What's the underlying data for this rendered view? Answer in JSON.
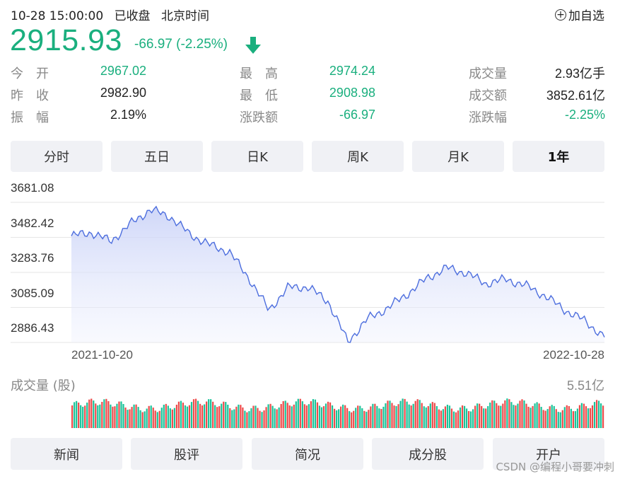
{
  "status": {
    "datetime": "10-28 15:00:00",
    "market_state": "已收盘",
    "timezone": "北京时间"
  },
  "add_watchlist": "加自选",
  "quote": {
    "price": "2915.93",
    "change": "-66.97 (-2.25%)"
  },
  "stats": [
    {
      "label": "今　开",
      "value": "2967.02",
      "tone": "green"
    },
    {
      "label": "最　高",
      "value": "2974.24",
      "tone": "green"
    },
    {
      "label": "成交量",
      "value": "2.93亿手",
      "tone": "dark"
    },
    {
      "label": "昨　收",
      "value": "2982.90",
      "tone": "dark"
    },
    {
      "label": "最　低",
      "value": "2908.98",
      "tone": "green"
    },
    {
      "label": "成交额",
      "value": "3852.61亿",
      "tone": "dark"
    },
    {
      "label": "振　幅",
      "value": "2.19%",
      "tone": "dark"
    },
    {
      "label": "涨跌额",
      "value": "-66.97",
      "tone": "green"
    },
    {
      "label": "涨跌幅",
      "value": "-2.25%",
      "tone": "green"
    }
  ],
  "tabs": [
    "分时",
    "五日",
    "日K",
    "周K",
    "月K",
    "1年"
  ],
  "active_tab": "1年",
  "chart_data": {
    "type": "area",
    "y_ticks": [
      "3681.08",
      "3482.42",
      "3283.76",
      "3085.09",
      "2886.43"
    ],
    "ylim": [
      2886.43,
      3681.08
    ],
    "x_ticks": [
      "2021-10-20",
      "2022-10-28"
    ],
    "x": [
      "2021-10-20",
      "2021-11-03",
      "2021-11-17",
      "2021-12-01",
      "2021-12-15",
      "2021-12-29",
      "2022-01-12",
      "2022-01-26",
      "2022-02-09",
      "2022-02-23",
      "2022-03-09",
      "2022-03-16",
      "2022-03-30",
      "2022-04-13",
      "2022-04-27",
      "2022-05-11",
      "2022-05-25",
      "2022-06-08",
      "2022-06-22",
      "2022-07-06",
      "2022-07-20",
      "2022-08-03",
      "2022-08-17",
      "2022-08-31",
      "2022-09-14",
      "2022-09-28",
      "2022-10-12",
      "2022-10-28"
    ],
    "values": [
      3490,
      3510,
      3460,
      3560,
      3640,
      3600,
      3500,
      3440,
      3400,
      3250,
      3070,
      3200,
      3200,
      3120,
      2890,
      3020,
      3080,
      3160,
      3250,
      3310,
      3280,
      3220,
      3245,
      3210,
      3150,
      3070,
      3010,
      2916
    ],
    "color": "#4d6ede",
    "volume_label": "成交量 (股)",
    "volume_max": "5.51亿",
    "up_color": "#ee4b4b",
    "down_color": "#1bc49a"
  },
  "bottom_nav": [
    "新闻",
    "股评",
    "简况",
    "成分股",
    "开户"
  ],
  "watermark": "CSDN @编程小哥要冲刺"
}
